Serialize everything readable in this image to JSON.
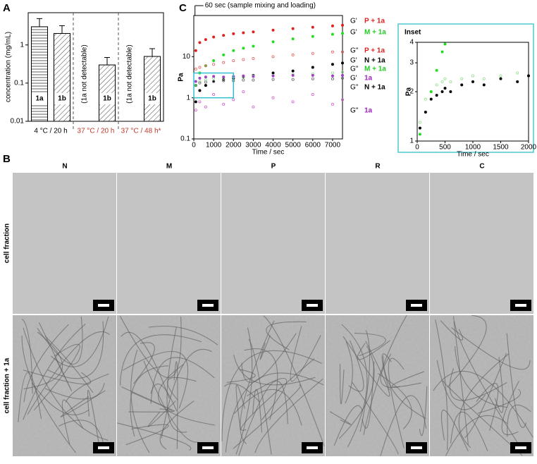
{
  "panel_labels": [
    "A",
    "B",
    "C"
  ],
  "chart_data": [
    {
      "type": "bar",
      "ylabel": "concentration (mg/mL)",
      "log_y": true,
      "ylim": [
        0.01,
        7
      ],
      "yticks": [
        0.01,
        0.1,
        1
      ],
      "groups": [
        {
          "name": "4 °C / 20 h",
          "label_color": "#000000",
          "bars": [
            {
              "label": "1a",
              "value": 3.0,
              "error": 1.9
            },
            {
              "label": "1b",
              "value": 2.0,
              "error": 1.2
            }
          ]
        },
        {
          "name": "37 °C / 20 h",
          "label_color": "#c0392b",
          "bars": [
            {
              "note": "(1a not detectable)"
            },
            {
              "label": "1b",
              "value": 0.3,
              "error": 0.17
            }
          ]
        },
        {
          "name": "37 °C / 48 h*",
          "label_color": "#c0392b",
          "bars": [
            {
              "note": "(1a not detectable)"
            },
            {
              "label": "1b",
              "value": 0.5,
              "error": 0.3
            }
          ]
        }
      ]
    },
    {
      "type": "scatter",
      "xlabel": "Time / sec",
      "ylabel": "Pa",
      "log_y": true,
      "xlim": [
        0,
        7500
      ],
      "xticks": [
        0,
        1000,
        2000,
        3000,
        4000,
        5000,
        6000,
        7000
      ],
      "ylim": [
        0.1,
        100
      ],
      "yticks": [
        0.1,
        1,
        10
      ],
      "annotation": {
        "text": "60 sec (sample mixing and loading)",
        "x": 60
      },
      "x": [
        100,
        300,
        600,
        1000,
        1500,
        2000,
        2500,
        3000,
        4000,
        5000,
        6000,
        7000,
        7500
      ],
      "series": [
        {
          "modulus": "G'",
          "name": "P + 1a",
          "color": "#e02020",
          "label_color": "#e02020",
          "marker": "filled",
          "values": [
            14,
            22,
            26,
            30,
            33,
            36,
            38,
            40,
            44,
            48,
            52,
            56,
            58
          ]
        },
        {
          "modulus": "G'",
          "name": "M + 1a",
          "color": "#22dd22",
          "label_color": "#22cc22",
          "marker": "filled",
          "values": [
            2,
            4,
            6,
            8,
            11,
            14,
            16,
            18,
            23,
            27,
            31,
            35,
            37
          ]
        },
        {
          "modulus": "G\"",
          "name": "P + 1a",
          "color": "#e06060",
          "label_color": "#e02020",
          "marker": "open",
          "values": [
            5,
            5.5,
            6,
            6.5,
            7.2,
            8,
            8.5,
            9,
            10,
            11,
            12,
            13,
            13
          ]
        },
        {
          "modulus": "G'",
          "name": "N + 1a",
          "color": "#000000",
          "label_color": "#000000",
          "marker": "filled",
          "values": [
            0.8,
            1.5,
            2,
            2.5,
            2.8,
            3,
            3.2,
            3.5,
            4,
            4.5,
            5.5,
            6.5,
            7
          ]
        },
        {
          "modulus": "G\"",
          "name": "M + 1a",
          "color": "#90e090",
          "label_color": "#22cc22",
          "marker": "open",
          "values": [
            2,
            2.5,
            2.7,
            3,
            3,
            3.2,
            3.2,
            3.4,
            3.5,
            3.7,
            3.8,
            4,
            4.2
          ]
        },
        {
          "modulus": "G'",
          "name": "1a",
          "color": "#a040c0",
          "label_color": "#a020c0",
          "marker": "filled",
          "values": [
            2.5,
            3,
            3.2,
            3.3,
            3.2,
            3.3,
            3.4,
            3.3,
            3.4,
            3.5,
            3.5,
            3.4,
            3.5
          ]
        },
        {
          "modulus": "G\"",
          "name": "N + 1a",
          "color": "#666666",
          "label_color": "#000000",
          "marker": "open",
          "values": [
            2,
            2.3,
            2.4,
            2.5,
            2.6,
            2.6,
            2.7,
            2.7,
            2.8,
            2.8,
            2.9,
            2.9,
            3
          ]
        },
        {
          "modulus": "G\"",
          "name": "1a",
          "color": "#d060d0",
          "label_color": "#a020c0",
          "marker": "open",
          "values": [
            0.5,
            0.8,
            0.6,
            1.2,
            0.7,
            0.9,
            1.4,
            0.6,
            1,
            0.8,
            1.2,
            0.7,
            0.9
          ]
        }
      ]
    },
    {
      "type": "scatter",
      "title": "Inset",
      "xlabel": "Time / sec",
      "ylabel": "Pa",
      "log_y": true,
      "xlim": [
        0,
        2000
      ],
      "xticks": [
        0,
        500,
        1000,
        1500,
        2000
      ],
      "ylim": [
        1,
        4
      ],
      "yticks": [
        1,
        2,
        3,
        4
      ],
      "x": [
        50,
        150,
        250,
        350,
        450,
        500,
        600,
        800,
        1000,
        1200,
        1500,
        1800,
        2000
      ],
      "series": [
        {
          "color": "#90e090",
          "marker": "open",
          "values": [
            1.3,
            1.8,
            2,
            2.2,
            2.3,
            2.4,
            2.3,
            2.4,
            2.5,
            2.4,
            2.5,
            2.6,
            2.5
          ]
        },
        {
          "color": "#22dd22",
          "marker": "filled",
          "values": [
            1.1,
            1.5,
            2,
            2.7,
            3.5,
            3.9,
            null,
            null,
            null,
            null,
            null,
            null,
            null
          ]
        },
        {
          "color": "#000000",
          "marker": "filled",
          "values": [
            1.2,
            1.5,
            1.8,
            1.9,
            2,
            2.1,
            2,
            2.2,
            2.3,
            2.2,
            2.4,
            2.3,
            2.5
          ]
        }
      ]
    }
  ],
  "micrographs": {
    "columns": [
      "N",
      "M",
      "P",
      "R",
      "C"
    ],
    "rows": [
      "cell fraction",
      "cell fraction + 1a"
    ]
  }
}
